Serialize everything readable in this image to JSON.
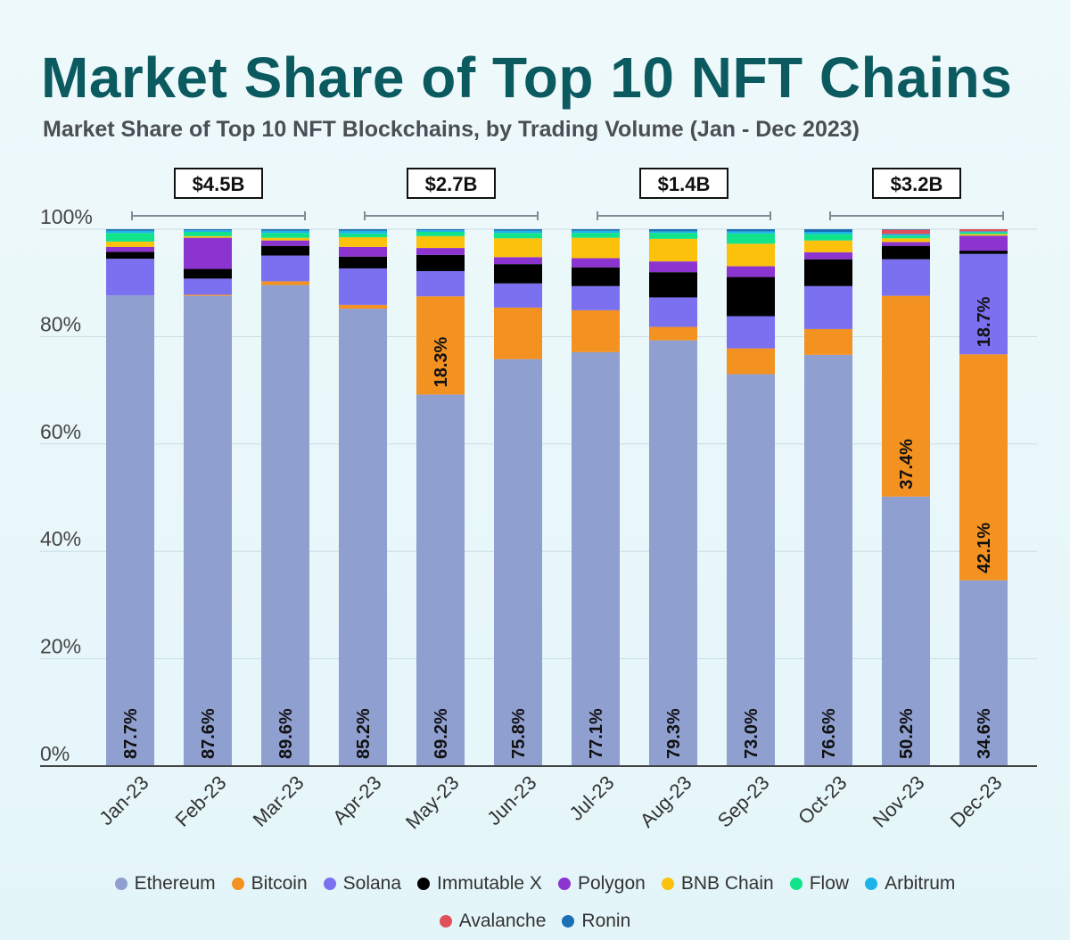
{
  "chart_data": {
    "type": "bar",
    "stacked": true,
    "title": "Market Share of Top 10 NFT Chains",
    "subtitle": "Market Share of Top 10 NFT Blockchains, by Trading Volume (Jan - Dec 2023)",
    "xlabel": "",
    "ylabel": "",
    "ylim": [
      0,
      100
    ],
    "y_ticks": [
      "0%",
      "20%",
      "40%",
      "60%",
      "80%",
      "100%"
    ],
    "grid": true,
    "legend_position": "bottom",
    "categories": [
      "Jan-23",
      "Feb-23",
      "Mar-23",
      "Apr-23",
      "May-23",
      "Jun-23",
      "Jul-23",
      "Aug-23",
      "Sep-23",
      "Oct-23",
      "Nov-23",
      "Dec-23"
    ],
    "series": [
      {
        "name": "Ethereum",
        "color": "#8f9fd0",
        "values": [
          87.7,
          87.6,
          89.6,
          85.2,
          69.2,
          75.8,
          77.1,
          79.3,
          73.0,
          76.6,
          50.2,
          34.6
        ]
      },
      {
        "name": "Bitcoin",
        "color": "#f39221",
        "values": [
          0.0,
          0.2,
          0.7,
          0.7,
          18.3,
          9.6,
          7.8,
          2.5,
          4.8,
          4.8,
          37.4,
          42.1
        ]
      },
      {
        "name": "Solana",
        "color": "#7b70f0",
        "values": [
          6.8,
          3.0,
          4.8,
          6.8,
          4.7,
          4.5,
          4.5,
          5.5,
          6.0,
          8.0,
          6.8,
          18.7
        ]
      },
      {
        "name": "Immutable X",
        "color": "#000000",
        "values": [
          1.3,
          1.8,
          1.8,
          2.2,
          3.0,
          3.6,
          3.5,
          4.7,
          7.3,
          5.0,
          2.5,
          0.6
        ]
      },
      {
        "name": "Polygon",
        "color": "#8b34d0",
        "values": [
          0.9,
          5.8,
          1.0,
          1.8,
          1.3,
          1.3,
          1.7,
          2.0,
          2.0,
          1.3,
          0.7,
          2.8
        ]
      },
      {
        "name": "BNB Chain",
        "color": "#fcc10a",
        "values": [
          1.0,
          0.3,
          0.5,
          1.8,
          2.2,
          3.5,
          3.8,
          4.2,
          4.2,
          2.2,
          0.7,
          0.3
        ]
      },
      {
        "name": "Flow",
        "color": "#11e38a",
        "values": [
          1.6,
          0.8,
          0.9,
          0.7,
          0.8,
          1.0,
          0.9,
          1.1,
          1.9,
          1.2,
          0.5,
          0.3
        ]
      },
      {
        "name": "Arbitrum",
        "color": "#1bb4e8",
        "values": [
          0.4,
          0.3,
          0.4,
          0.5,
          0.3,
          0.4,
          0.4,
          0.3,
          0.4,
          0.4,
          0.3,
          0.2
        ]
      },
      {
        "name": "Avalanche",
        "color": "#e0505a",
        "values": [
          0.0,
          0.0,
          0.0,
          0.0,
          0.0,
          0.0,
          0.0,
          0.0,
          0.0,
          0.0,
          0.8,
          0.4
        ]
      },
      {
        "name": "Ronin",
        "color": "#1b6fb5",
        "values": [
          0.3,
          0.2,
          0.3,
          0.3,
          0.2,
          0.3,
          0.3,
          0.4,
          0.4,
          0.5,
          0.1,
          0.0
        ]
      }
    ],
    "data_labels": [
      {
        "series": "Ethereum",
        "month": "Jan-23",
        "text": "87.7%"
      },
      {
        "series": "Ethereum",
        "month": "Feb-23",
        "text": "87.6%"
      },
      {
        "series": "Ethereum",
        "month": "Mar-23",
        "text": "89.6%"
      },
      {
        "series": "Ethereum",
        "month": "Apr-23",
        "text": "85.2%"
      },
      {
        "series": "Ethereum",
        "month": "May-23",
        "text": "69.2%"
      },
      {
        "series": "Ethereum",
        "month": "Jun-23",
        "text": "75.8%"
      },
      {
        "series": "Ethereum",
        "month": "Jul-23",
        "text": "77.1%"
      },
      {
        "series": "Ethereum",
        "month": "Aug-23",
        "text": "79.3%"
      },
      {
        "series": "Ethereum",
        "month": "Sep-23",
        "text": "73.0%"
      },
      {
        "series": "Ethereum",
        "month": "Oct-23",
        "text": "76.6%"
      },
      {
        "series": "Ethereum",
        "month": "Nov-23",
        "text": "50.2%"
      },
      {
        "series": "Ethereum",
        "month": "Dec-23",
        "text": "34.6%"
      },
      {
        "series": "Bitcoin",
        "month": "May-23",
        "text": "18.3%"
      },
      {
        "series": "Bitcoin",
        "month": "Nov-23",
        "text": "37.4%"
      },
      {
        "series": "Bitcoin",
        "month": "Dec-23",
        "text": "42.1%"
      },
      {
        "series": "Solana",
        "month": "Dec-23",
        "text": "18.7%"
      }
    ],
    "annotations": [
      {
        "text": "$4.5B",
        "months": [
          "Jan-23",
          "Mar-23"
        ]
      },
      {
        "text": "$2.7B",
        "months": [
          "Apr-23",
          "Jun-23"
        ]
      },
      {
        "text": "$1.4B",
        "months": [
          "Jul-23",
          "Sep-23"
        ]
      },
      {
        "text": "$3.2B",
        "months": [
          "Oct-23",
          "Dec-23"
        ]
      }
    ]
  }
}
